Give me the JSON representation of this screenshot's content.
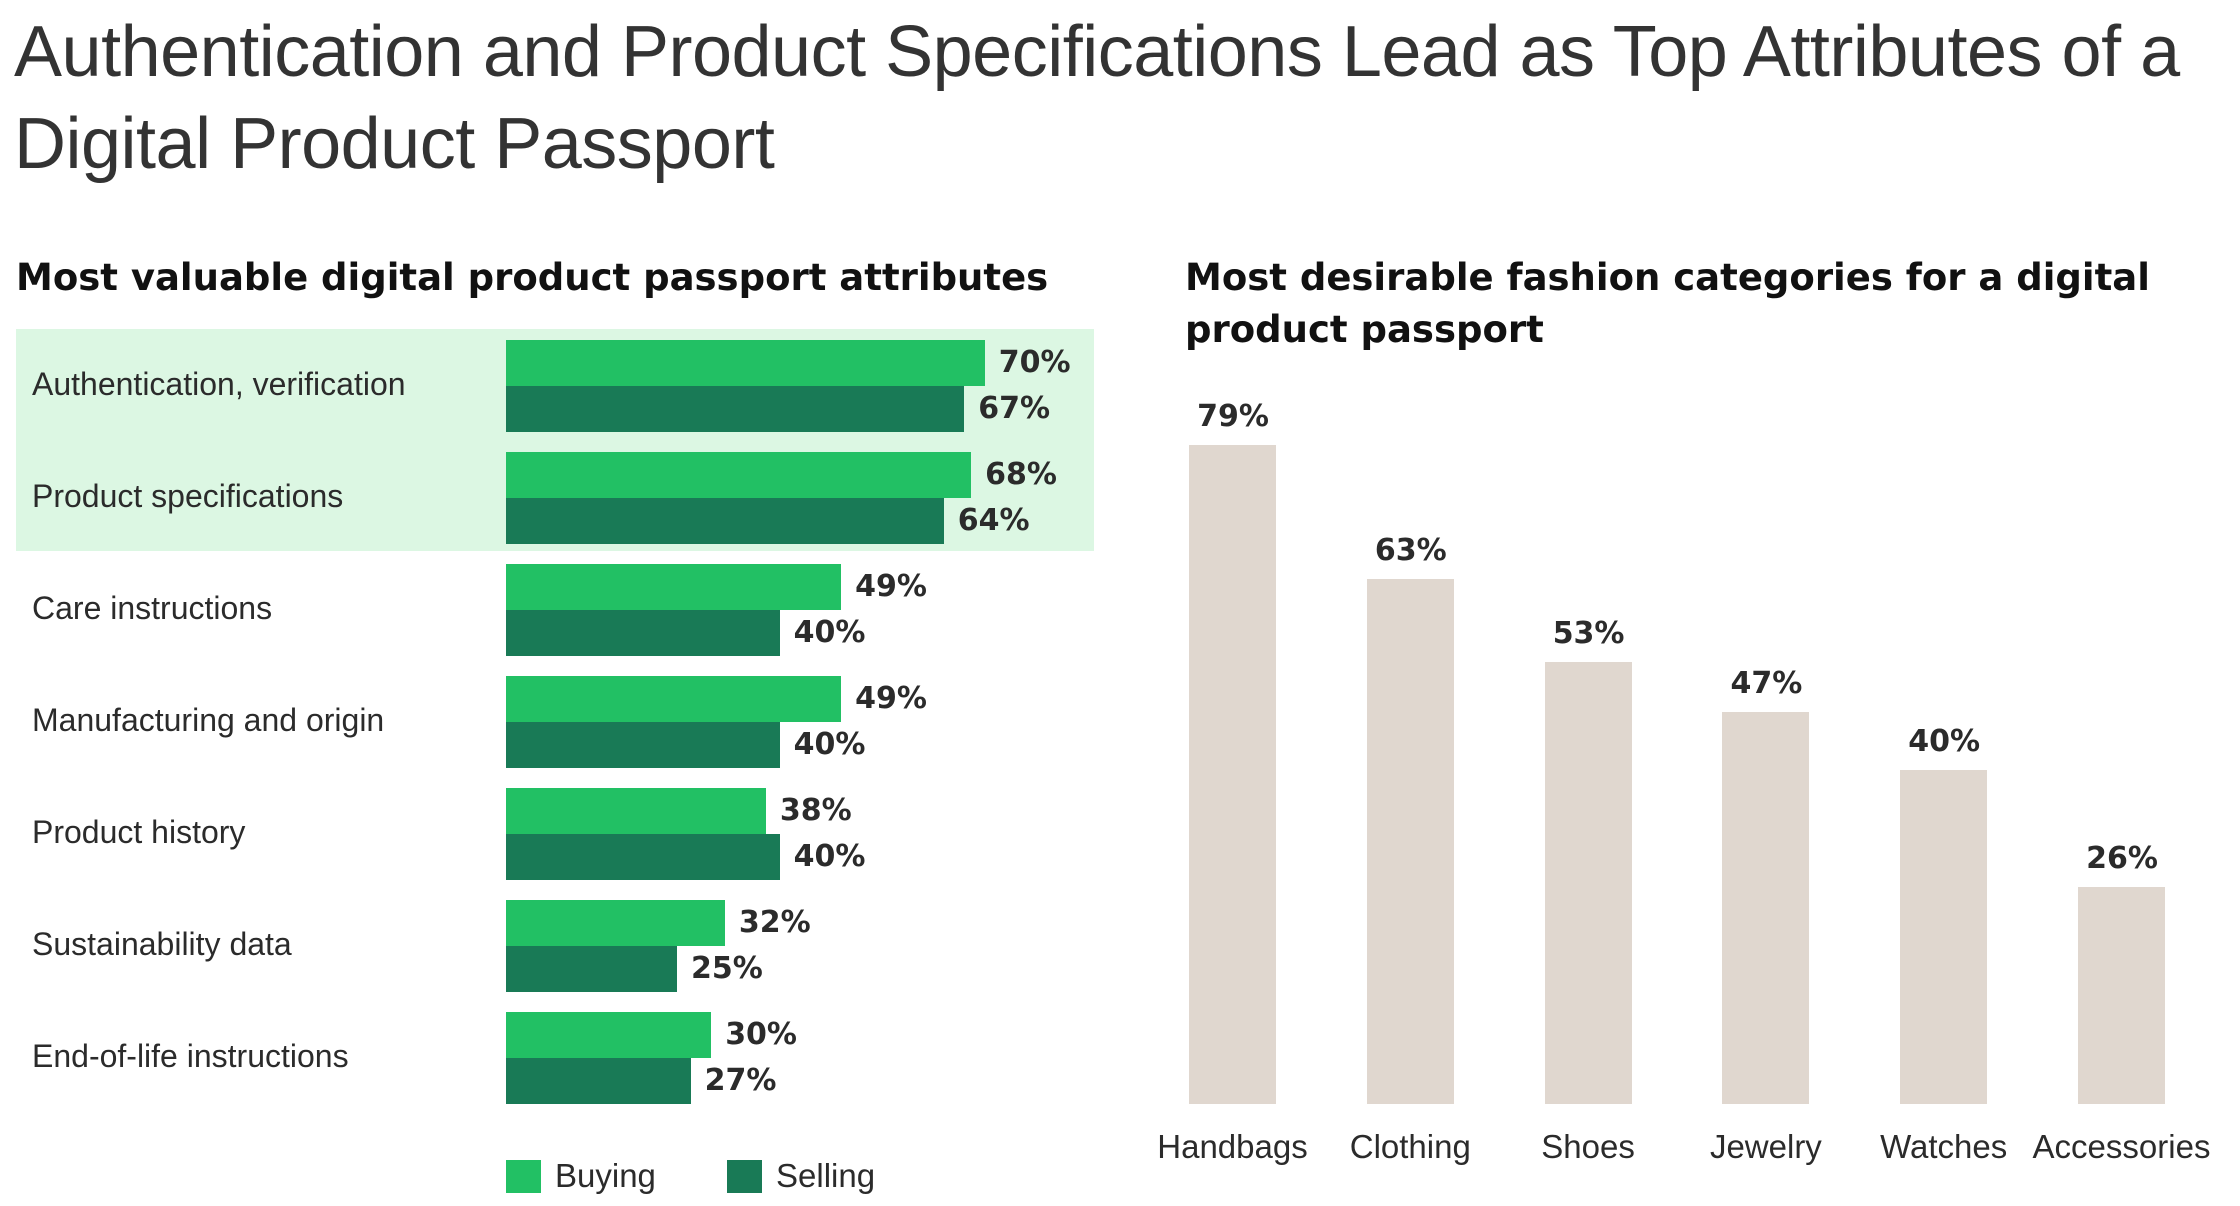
{
  "title": "Authentication and Product Specifications Lead as Top Attributes of a Digital Product Passport",
  "colors": {
    "buying": "#22c064",
    "selling": "#197a56",
    "highlight": "#dcf7e3",
    "category_bar": "#e0d7cf"
  },
  "chart_data": [
    {
      "type": "bar",
      "orientation": "horizontal",
      "title": "Most valuable digital product passport attributes",
      "categories": [
        "Authentication, verification",
        "Product specifications",
        "Care instructions",
        "Manufacturing and origin",
        "Product history",
        "Sustainability data",
        "End-of-life instructions"
      ],
      "series": [
        {
          "name": "Buying",
          "values": [
            70,
            68,
            49,
            49,
            38,
            32,
            30
          ],
          "labels": [
            "70%",
            "68%",
            "49%",
            "49%",
            "38%",
            "32%",
            "30%"
          ]
        },
        {
          "name": "Selling",
          "values": [
            67,
            64,
            40,
            40,
            40,
            25,
            27
          ],
          "labels": [
            "67%",
            "64%",
            "40%",
            "40%",
            "40%",
            "25%",
            "27%"
          ]
        }
      ],
      "highlighted_categories": [
        "Authentication, verification",
        "Product specifications"
      ],
      "legend": "bottom",
      "grid": false
    },
    {
      "type": "bar",
      "orientation": "vertical",
      "title": "Most desirable fashion categories for a digital product passport",
      "categories": [
        "Handbags",
        "Clothing",
        "Shoes",
        "Jewelry",
        "Watches",
        "Accessories"
      ],
      "values": [
        79,
        63,
        53,
        47,
        40,
        26
      ],
      "labels": [
        "79%",
        "63%",
        "53%",
        "47%",
        "40%",
        "26%"
      ],
      "grid": false
    }
  ]
}
